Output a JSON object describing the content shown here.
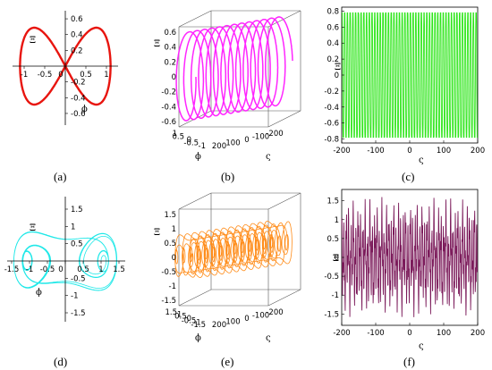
{
  "figure": {
    "colors": {
      "red": "#e8150f",
      "magenta": "#ff19ff",
      "green": "#2ee61a",
      "cyan": "#20e8e8",
      "orange": "#ff8c19",
      "purple": "#7b1a5a"
    }
  },
  "chart_data": [
    {
      "id": "a",
      "caption": "(a)",
      "type": "line",
      "description_kind": "2d-phase-portrait",
      "xlabel": "ϕ",
      "ylabel": "Ξ",
      "xlim": [
        -1.3,
        1.3
      ],
      "ylim": [
        -0.75,
        0.75
      ],
      "xticks": [
        "-1",
        "-0.5",
        "0",
        "0.5",
        "1"
      ],
      "yticks": [
        "0.6",
        "0.4",
        "0.2",
        "-0.2",
        "-0.4",
        "-0.6"
      ],
      "series": [
        {
          "color": "#e8150f",
          "shape": "figure-eight",
          "xamp": 1.1,
          "yamp": 0.68
        }
      ]
    },
    {
      "id": "b",
      "caption": "(b)",
      "type": "line",
      "description_kind": "3d-trajectory",
      "xlabel": "ϕ",
      "ylabel": "ς",
      "zlabel": "Ξ",
      "zticks": [
        "0.6",
        "0.4",
        "0.2",
        "0",
        "-0.2",
        "-0.4",
        "-0.6"
      ],
      "phiticks": [
        "1",
        "0.5",
        "0",
        "-0.5",
        "-1"
      ],
      "varsigmaticks": [
        "200",
        "100",
        "0",
        "-100",
        "-200"
      ],
      "series": [
        {
          "color": "#ff19ff"
        }
      ]
    },
    {
      "id": "c",
      "caption": "(c)",
      "type": "line",
      "description_kind": "time-series",
      "xlabel": "ς",
      "ylabel": "Ξ",
      "xlim": [
        -200,
        200
      ],
      "ylim": [
        -0.85,
        0.85
      ],
      "xticks": [
        "-200",
        "-100",
        "0",
        "100",
        "200"
      ],
      "yticks": [
        "0.8",
        "0.6",
        "0.4",
        "0.2",
        "0",
        "-0.2",
        "-0.4",
        "-0.6",
        "-0.8"
      ],
      "series": [
        {
          "color": "#2ee61a",
          "amplitude": 0.78
        }
      ]
    },
    {
      "id": "d",
      "caption": "(d)",
      "type": "line",
      "description_kind": "2d-phase-portrait",
      "xlabel": "ϕ",
      "ylabel": "Ξ",
      "xlim": [
        -1.8,
        1.8
      ],
      "ylim": [
        -1.8,
        1.8
      ],
      "xticks": [
        "-1.5",
        "-1",
        "-0.5",
        "0",
        "0.5",
        "1",
        "1.5"
      ],
      "yticks": [
        "1.5",
        "1",
        "0.5",
        "-0.5",
        "-1",
        "-1.5"
      ],
      "series": [
        {
          "color": "#20e8e8"
        }
      ]
    },
    {
      "id": "e",
      "caption": "(e)",
      "type": "line",
      "description_kind": "3d-trajectory",
      "xlabel": "ϕ",
      "ylabel": "ς",
      "zlabel": "Ξ",
      "zticks": [
        "1.5",
        "1",
        "0.5",
        "0",
        "-0.5",
        "-1",
        "-1.5"
      ],
      "phiticks": [
        "1.5",
        "1",
        "0.5",
        "0",
        "-0.5",
        "-1",
        "-1.5"
      ],
      "varsigmaticks": [
        "200",
        "100",
        "0",
        "-100",
        "-200"
      ],
      "series": [
        {
          "color": "#ff8c19"
        }
      ]
    },
    {
      "id": "f",
      "caption": "(f)",
      "type": "line",
      "description_kind": "time-series",
      "xlabel": "ς",
      "ylabel": "Ξ",
      "xlim": [
        -200,
        200
      ],
      "ylim": [
        -1.8,
        1.8
      ],
      "xticks": [
        "-200",
        "-100",
        "0",
        "100",
        "200"
      ],
      "yticks": [
        "1.5",
        "1",
        "0.5",
        "0",
        "-0.5",
        "-1",
        "-1.5"
      ],
      "series": [
        {
          "color": "#7b1a5a",
          "amplitude": 1.65
        }
      ]
    }
  ]
}
